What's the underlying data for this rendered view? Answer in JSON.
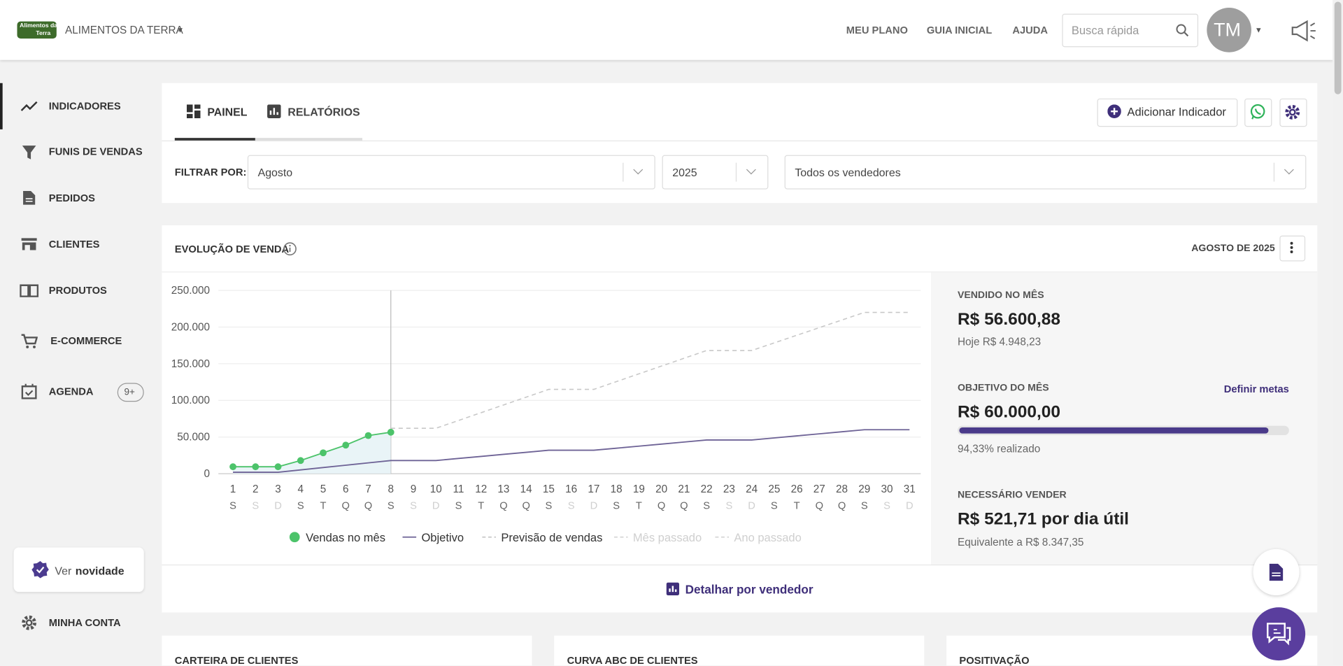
{
  "header": {
    "logo_text": [
      "Alimentos da",
      "Terra"
    ],
    "company": "ALIMENTOS DA TERRA",
    "nav": [
      "MEU PLANO",
      "GUIA INICIAL",
      "AJUDA"
    ],
    "search_placeholder": "Busca rápida",
    "avatar": "TM"
  },
  "sidebar": {
    "items": [
      {
        "label": "INDICADORES"
      },
      {
        "label": "FUNIS DE VENDAS"
      },
      {
        "label": "PEDIDOS"
      },
      {
        "label": "CLIENTES"
      },
      {
        "label": "PRODUTOS"
      },
      {
        "label": "E-COMMERCE"
      },
      {
        "label": "AGENDA",
        "badge": "9+"
      }
    ],
    "novidade": [
      "Ver",
      "novidade"
    ],
    "account": "MINHA CONTA"
  },
  "tabs": {
    "items": [
      "PAINEL",
      "RELATÓRIOS"
    ],
    "add_button": "Adicionar Indicador"
  },
  "filter": {
    "label": "FILTRAR POR:",
    "month": "Agosto",
    "year": "2025",
    "seller": "Todos os vendedores"
  },
  "card": {
    "title": "EVOLUÇÃO DE VENDA",
    "period": "AGOSTO DE 2025",
    "footer": "Detalhar por vendedor"
  },
  "chart_data": {
    "type": "line",
    "categories": [
      "1",
      "2",
      "3",
      "4",
      "5",
      "6",
      "7",
      "8",
      "9",
      "10",
      "11",
      "12",
      "13",
      "14",
      "15",
      "16",
      "17",
      "18",
      "19",
      "20",
      "21",
      "22",
      "23",
      "24",
      "25",
      "26",
      "27",
      "28",
      "29",
      "30",
      "31"
    ],
    "weekdays": [
      "S",
      "S",
      "D",
      "S",
      "T",
      "Q",
      "Q",
      "S",
      "S",
      "D",
      "S",
      "T",
      "Q",
      "Q",
      "S",
      "S",
      "D",
      "S",
      "T",
      "Q",
      "Q",
      "S",
      "S",
      "D",
      "S",
      "T",
      "Q",
      "Q",
      "S",
      "S",
      "D"
    ],
    "ylim": [
      0,
      250000
    ],
    "yticks": [
      0,
      {
        "value": 50000,
        "label": "50.000"
      },
      {
        "value": 100000,
        "label": "100.000"
      },
      {
        "value": 150000,
        "label": "150.000"
      },
      {
        "value": 200000,
        "label": "200.000"
      },
      {
        "value": 250000,
        "label": "250.000"
      }
    ],
    "grid": true,
    "series": [
      {
        "name": "Vendas no mês",
        "color": "#4cc36a",
        "markers": true,
        "area": true,
        "values": [
          9500,
          9500,
          9500,
          18000,
          28500,
          39000,
          52000,
          56600.88,
          null,
          null,
          null,
          null,
          null,
          null,
          null,
          null,
          null,
          null,
          null,
          null,
          null,
          null,
          null,
          null,
          null,
          null,
          null,
          null,
          null,
          null,
          null
        ]
      },
      {
        "name": "Objetivo",
        "color": "#6e6396",
        "values": [
          2000,
          2000,
          2000,
          5200,
          8400,
          11600,
          14800,
          18000,
          18000,
          18000,
          20800,
          23600,
          26400,
          29200,
          32000,
          32000,
          32000,
          34800,
          37600,
          40400,
          43200,
          46000,
          46000,
          46000,
          48800,
          51600,
          54400,
          57200,
          60000,
          60000,
          60000
        ]
      },
      {
        "name": "Previsão de vendas",
        "color": "#c8c8c8",
        "dash": true,
        "values": [
          null,
          null,
          null,
          null,
          null,
          null,
          null,
          62000,
          62000,
          62000,
          72600,
          83200,
          93800,
          104400,
          115000,
          115000,
          115000,
          125600,
          136200,
          146800,
          157400,
          168000,
          168000,
          168000,
          178400,
          188800,
          199200,
          209600,
          220000,
          220000,
          220000
        ]
      },
      {
        "name": "Mês passado",
        "color": "#d6d6d6",
        "dash": true,
        "hidden": true
      },
      {
        "name": "Ano passado",
        "color": "#d6d6d6",
        "dash": true,
        "hidden": true
      }
    ]
  },
  "stats": {
    "sold_label": "VENDIDO NO MÊS",
    "sold": "R$ 56.600,88",
    "today": "Hoje R$ 4.948,23",
    "goal_label": "OBJETIVO DO MÊS",
    "goal_link": "Definir metas",
    "goal": "R$ 60.000,00",
    "progress": 94.33,
    "progress_label": "94,33% realizado",
    "need_label": "NECESSÁRIO VENDER",
    "need": "R$ 521,71 por dia útil",
    "equivalent": "Equivalente a R$ 8.347,35"
  },
  "cards": [
    "CARTEIRA DE CLIENTES",
    "CURVA ABC DE CLIENTES",
    "POSITIVAÇÃO"
  ]
}
